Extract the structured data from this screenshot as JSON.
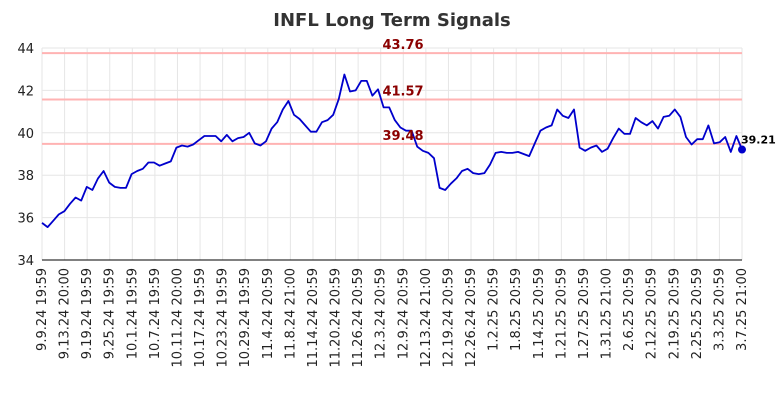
{
  "chart_data": {
    "type": "line",
    "title": "INFL Long Term Signals",
    "xlabel": "",
    "ylabel": "",
    "ylim": [
      34,
      44
    ],
    "yticks": [
      34,
      36,
      38,
      40,
      42,
      44
    ],
    "grid": true,
    "x_tick_labels": [
      "9.9.24 19:59",
      "9.13.24 20:00",
      "9.19.24 19:59",
      "9.25.24 19:59",
      "10.1.24 19:59",
      "10.7.24 19:59",
      "10.11.24 20:00",
      "10.17.24 19:59",
      "10.23.24 19:59",
      "10.29.24 19:59",
      "11.4.24 20:59",
      "11.8.24 21:00",
      "11.14.24 20:59",
      "11.20.24 20:59",
      "11.26.24 20:59",
      "12.3.24 20:59",
      "12.9.24 20:59",
      "12.13.24 21:00",
      "12.19.24 20:59",
      "12.26.24 20:59",
      "1.2.25 20:59",
      "1.8.25 20:59",
      "1.14.25 20:59",
      "1.21.25 20:59",
      "1.27.25 20:59",
      "1.31.25 21:00",
      "2.6.25 20:59",
      "2.12.25 20:59",
      "2.19.25 20:59",
      "2.25.25 20:59",
      "3.3.25 20:59",
      "3.7.25 21:00"
    ],
    "reference_lines": [
      {
        "value": 43.76,
        "label": "43.76"
      },
      {
        "value": 41.57,
        "label": "41.57"
      },
      {
        "value": 39.48,
        "label": "39.48"
      }
    ],
    "series": [
      {
        "color": "#0000cc",
        "values": [
          35.75,
          35.55,
          35.85,
          36.15,
          36.3,
          36.65,
          36.95,
          36.8,
          37.45,
          37.3,
          37.85,
          38.2,
          37.65,
          37.45,
          37.4,
          37.4,
          38.05,
          38.2,
          38.3,
          38.6,
          38.6,
          38.45,
          38.55,
          38.65,
          39.3,
          39.4,
          39.35,
          39.45,
          39.65,
          39.85,
          39.85,
          39.85,
          39.6,
          39.9,
          39.6,
          39.75,
          39.8,
          40.0,
          39.5,
          39.4,
          39.6,
          40.2,
          40.5,
          41.1,
          41.5,
          40.85,
          40.65,
          40.35,
          40.05,
          40.05,
          40.5,
          40.6,
          40.85,
          41.6,
          42.75,
          41.95,
          42.0,
          42.45,
          42.45,
          41.75,
          42.05,
          41.2,
          41.2,
          40.6,
          40.25,
          40.1,
          40.1,
          39.35,
          39.15,
          39.05,
          38.8,
          37.4,
          37.3,
          37.6,
          37.85,
          38.2,
          38.3,
          38.1,
          38.05,
          38.1,
          38.5,
          39.05,
          39.1,
          39.05,
          39.05,
          39.1,
          39.0,
          38.9,
          39.5,
          40.1,
          40.25,
          40.35,
          41.1,
          40.8,
          40.7,
          41.1,
          39.3,
          39.15,
          39.3,
          39.4,
          39.1,
          39.25,
          39.75,
          40.2,
          39.95,
          39.95,
          40.7,
          40.5,
          40.35,
          40.55,
          40.2,
          40.75,
          40.8,
          41.1,
          40.75,
          39.8,
          39.45,
          39.7,
          39.7,
          40.35,
          39.5,
          39.55,
          39.8,
          39.1,
          39.85,
          39.21
        ]
      }
    ],
    "last_value": 39.21,
    "last_label": "39.21"
  }
}
